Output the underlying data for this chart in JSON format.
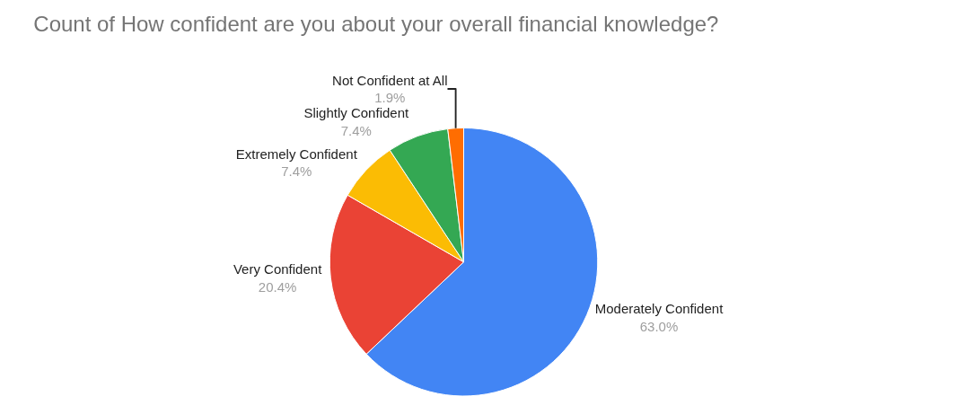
{
  "chart_data": {
    "type": "pie",
    "title": "Count of How confident are you about your overall financial knowledge?",
    "categories": [
      "Moderately Confident",
      "Very Confident",
      "Extremely Confident",
      "Slightly Confident",
      "Not Confident at All"
    ],
    "values": [
      63.0,
      20.4,
      7.4,
      7.4,
      1.9
    ],
    "value_labels": [
      "63.0%",
      "20.4%",
      "7.4%",
      "7.4%",
      "1.9%"
    ],
    "colors": [
      "#4285f4",
      "#ea4335",
      "#fbbc04",
      "#34a853",
      "#ff6d01"
    ],
    "legend": false
  }
}
